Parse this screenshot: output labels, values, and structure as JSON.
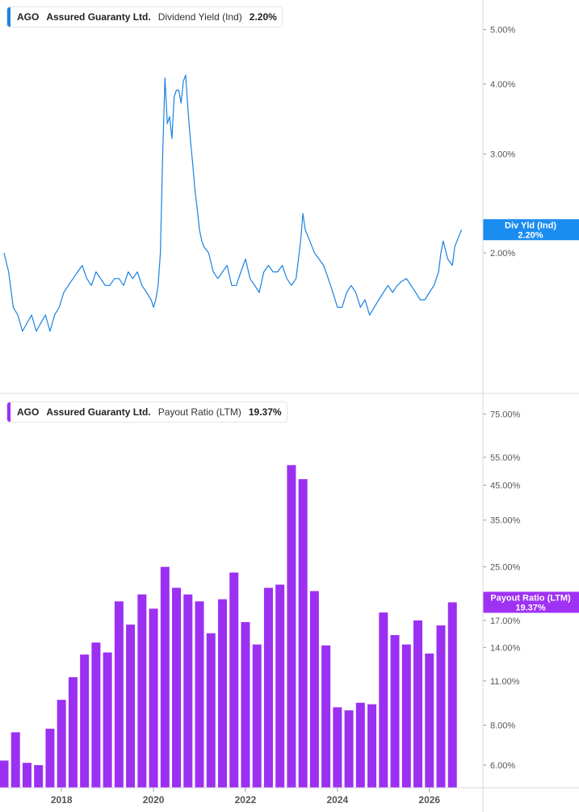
{
  "colors": {
    "yield": "#1a82e2",
    "payout": "#9c30f2",
    "grid": "#d7d9dc",
    "tag_yield": "#1a8cf0",
    "tag_payout": "#9f31f4"
  },
  "top_legend": {
    "ticker": "AGO",
    "company": "Assured Guaranty Ltd.",
    "metric": "Dividend Yield (Ind)",
    "value": "2.20%"
  },
  "bottom_legend": {
    "ticker": "AGO",
    "company": "Assured Guaranty Ltd.",
    "metric": "Payout Ratio (LTM)",
    "value": "19.37%"
  },
  "top_tag": {
    "line1": "Div Yld (Ind)",
    "line2": "2.20%"
  },
  "bottom_tag": {
    "line1": "Payout Ratio (LTM)",
    "line2": "19.37%"
  },
  "chart_data": [
    {
      "type": "line",
      "title": "AGO Assured Guaranty Ltd. Dividend Yield (Ind)",
      "scale": "log",
      "yticks": [
        "5.00%",
        "4.00%",
        "3.00%",
        "2.00%"
      ],
      "ytick_values": [
        5.0,
        4.0,
        3.0,
        2.0
      ],
      "xlim": [
        2016.75,
        2026.9
      ],
      "ylim": [
        1.4,
        5.5
      ],
      "series": [
        {
          "x": [
            2016.75,
            2016.85,
            2016.95,
            2017.05,
            2017.15,
            2017.25,
            2017.35,
            2017.45,
            2017.55,
            2017.65,
            2017.75,
            2017.85,
            2017.95,
            2018.05,
            2018.15,
            2018.25,
            2018.35,
            2018.45,
            2018.55,
            2018.65,
            2018.75,
            2018.85,
            2018.95,
            2019.05,
            2019.15,
            2019.25,
            2019.35,
            2019.45,
            2019.55,
            2019.65,
            2019.75,
            2019.85,
            2019.95,
            2020.0,
            2020.05,
            2020.1,
            2020.15,
            2020.2,
            2020.25,
            2020.3,
            2020.35,
            2020.4,
            2020.45,
            2020.5,
            2020.55,
            2020.6,
            2020.65,
            2020.7,
            2020.75,
            2020.8,
            2020.85,
            2020.9,
            2020.95,
            2021.0,
            2021.05,
            2021.1,
            2021.2,
            2021.3,
            2021.4,
            2021.5,
            2021.6,
            2021.7,
            2021.8,
            2021.9,
            2022.0,
            2022.1,
            2022.2,
            2022.3,
            2022.4,
            2022.5,
            2022.6,
            2022.7,
            2022.8,
            2022.9,
            2023.0,
            2023.1,
            2023.2,
            2023.25,
            2023.3,
            2023.4,
            2023.5,
            2023.6,
            2023.7,
            2023.8,
            2023.9,
            2024.0,
            2024.1,
            2024.2,
            2024.3,
            2024.4,
            2024.5,
            2024.6,
            2024.7,
            2024.8,
            2024.9,
            2025.0,
            2025.1,
            2025.2,
            2025.3,
            2025.4,
            2025.5,
            2025.6,
            2025.7,
            2025.8,
            2025.9,
            2026.0,
            2026.1,
            2026.2,
            2026.25,
            2026.3,
            2026.4,
            2026.5,
            2026.55,
            2026.6,
            2026.65,
            2026.7
          ],
          "y": [
            2.0,
            1.85,
            1.6,
            1.55,
            1.45,
            1.5,
            1.55,
            1.45,
            1.5,
            1.55,
            1.45,
            1.55,
            1.6,
            1.7,
            1.75,
            1.8,
            1.85,
            1.9,
            1.8,
            1.75,
            1.85,
            1.8,
            1.75,
            1.75,
            1.8,
            1.8,
            1.75,
            1.85,
            1.8,
            1.85,
            1.75,
            1.7,
            1.65,
            1.6,
            1.65,
            1.75,
            2.0,
            3.0,
            4.1,
            3.4,
            3.5,
            3.2,
            3.8,
            3.9,
            3.9,
            3.7,
            4.05,
            4.15,
            3.6,
            3.2,
            2.9,
            2.6,
            2.4,
            2.2,
            2.1,
            2.05,
            2.0,
            1.85,
            1.8,
            1.85,
            1.9,
            1.75,
            1.75,
            1.85,
            1.95,
            1.8,
            1.75,
            1.7,
            1.85,
            1.9,
            1.85,
            1.85,
            1.9,
            1.8,
            1.75,
            1.8,
            2.1,
            2.35,
            2.2,
            2.1,
            2.0,
            1.95,
            1.9,
            1.8,
            1.7,
            1.6,
            1.6,
            1.7,
            1.75,
            1.7,
            1.6,
            1.65,
            1.55,
            1.6,
            1.65,
            1.7,
            1.75,
            1.7,
            1.75,
            1.78,
            1.8,
            1.75,
            1.7,
            1.65,
            1.65,
            1.7,
            1.75,
            1.85,
            2.0,
            2.1,
            1.95,
            1.9,
            2.05,
            2.1,
            2.15,
            2.2
          ]
        }
      ]
    },
    {
      "type": "bar",
      "title": "AGO Assured Guaranty Ltd. Payout Ratio (LTM)",
      "scale": "log",
      "yticks": [
        "75.00%",
        "55.00%",
        "45.00%",
        "35.00%",
        "25.00%",
        "17.00%",
        "14.00%",
        "11.00%",
        "8.00%",
        "6.00%"
      ],
      "ytick_values": [
        75,
        55,
        45,
        35,
        25,
        17,
        14,
        11,
        8,
        6
      ],
      "x_tick_labels": [
        "2018",
        "2020",
        "2022",
        "2024",
        "2026"
      ],
      "x_tick_values": [
        2018,
        2020,
        2022,
        2024,
        2026
      ],
      "xlim": [
        2016.75,
        2026.9
      ],
      "ylim": [
        5.2,
        85
      ],
      "bars": [
        {
          "x": 2016.75,
          "value": 6.2
        },
        {
          "x": 2017.0,
          "value": 7.6
        },
        {
          "x": 2017.25,
          "value": 6.1
        },
        {
          "x": 2017.5,
          "value": 6.0
        },
        {
          "x": 2017.75,
          "value": 7.8
        },
        {
          "x": 2018.0,
          "value": 9.6
        },
        {
          "x": 2018.25,
          "value": 11.3
        },
        {
          "x": 2018.5,
          "value": 13.3
        },
        {
          "x": 2018.75,
          "value": 14.5
        },
        {
          "x": 2019.0,
          "value": 13.5
        },
        {
          "x": 2019.25,
          "value": 19.5
        },
        {
          "x": 2019.5,
          "value": 16.5
        },
        {
          "x": 2019.75,
          "value": 20.5
        },
        {
          "x": 2020.0,
          "value": 18.5
        },
        {
          "x": 2020.25,
          "value": 25.0
        },
        {
          "x": 2020.5,
          "value": 21.5
        },
        {
          "x": 2020.75,
          "value": 20.5
        },
        {
          "x": 2021.0,
          "value": 19.5
        },
        {
          "x": 2021.25,
          "value": 15.5
        },
        {
          "x": 2021.5,
          "value": 19.8
        },
        {
          "x": 2021.75,
          "value": 24.0
        },
        {
          "x": 2022.0,
          "value": 16.8
        },
        {
          "x": 2022.25,
          "value": 14.3
        },
        {
          "x": 2022.5,
          "value": 21.5
        },
        {
          "x": 2022.75,
          "value": 22.0
        },
        {
          "x": 2023.0,
          "value": 52.0
        },
        {
          "x": 2023.25,
          "value": 47.0
        },
        {
          "x": 2023.5,
          "value": 21.0
        },
        {
          "x": 2023.75,
          "value": 14.2
        },
        {
          "x": 2024.0,
          "value": 9.1
        },
        {
          "x": 2024.25,
          "value": 8.9
        },
        {
          "x": 2024.5,
          "value": 9.4
        },
        {
          "x": 2024.75,
          "value": 9.3
        },
        {
          "x": 2025.0,
          "value": 18.0
        },
        {
          "x": 2025.25,
          "value": 15.3
        },
        {
          "x": 2025.5,
          "value": 14.3
        },
        {
          "x": 2025.75,
          "value": 17.0
        },
        {
          "x": 2026.0,
          "value": 13.4
        },
        {
          "x": 2026.25,
          "value": 16.4
        },
        {
          "x": 2026.5,
          "value": 19.37
        }
      ]
    }
  ]
}
